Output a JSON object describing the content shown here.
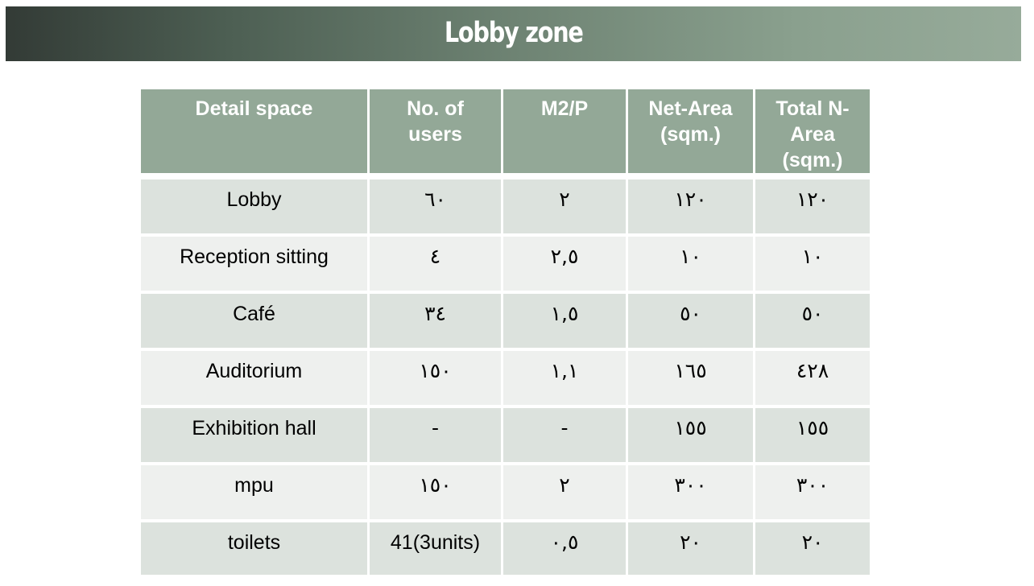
{
  "title": "Lobby zone",
  "table": {
    "headers": [
      "Detail space",
      "No. of users",
      "M2/P",
      "Net-Area (sqm.)",
      "Total N-Area (sqm.)"
    ],
    "rows": [
      [
        "Lobby",
        "٦٠",
        "٢",
        "١٢٠",
        "١٢٠"
      ],
      [
        "Reception sitting",
        "٤",
        "٢,٥",
        "١٠",
        "١٠"
      ],
      [
        "Café",
        "٣٤",
        "١,٥",
        "٥٠",
        "٥٠"
      ],
      [
        "Auditorium",
        "١٥٠",
        "١,١",
        "١٦٥",
        "٤٢٨"
      ],
      [
        "Exhibition hall",
        "-",
        "-",
        "١٥٥",
        "١٥٥"
      ],
      [
        "mpu",
        "١٥٠",
        "٢",
        "٣٠٠",
        "٣٠٠"
      ],
      [
        "toilets",
        "41(3units)",
        "٠,٥",
        "٢٠",
        "٢٠"
      ]
    ]
  },
  "colors": {
    "header_bg": "#93a897",
    "row_odd_bg": "#dce2dd",
    "row_even_bg": "#eef0ee",
    "banner_dark": "#333b36",
    "banner_light": "#97ab9a"
  }
}
